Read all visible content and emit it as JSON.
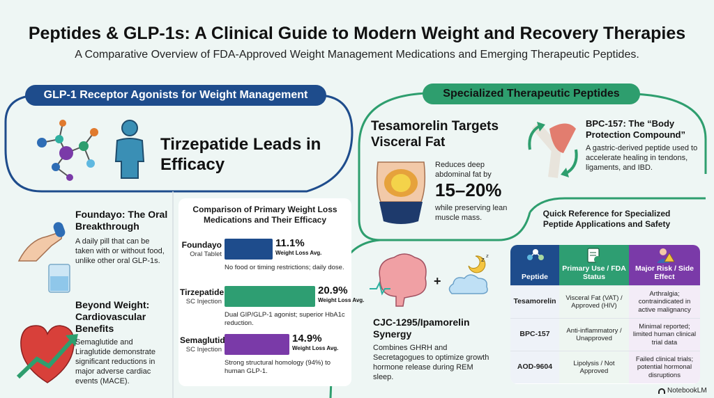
{
  "header": {
    "title": "Peptides & GLP-1s: A Clinical Guide to Modern Weight and Recovery Therapies",
    "subtitle": "A Comparative Overview of FDA-Approved Weight Management Medications and Emerging Therapeutic Peptides."
  },
  "left_section": {
    "pill": "GLP-1 Receptor Agonists for Weight Management",
    "hero": "Tirzepatide Leads in Efficacy",
    "foundayo": {
      "title": "Foundayo: The Oral Breakthrough",
      "desc": "A daily pill that can be taken with or without food, unlike other oral GLP-1s."
    },
    "cardio": {
      "title": "Beyond Weight: Cardiovascular Benefits",
      "desc": "Semaglutide and Liraglutide demonstrate significant reductions in major adverse cardiac events (MACE)."
    }
  },
  "chart_data": {
    "type": "bar",
    "title": "Comparison of Primary Weight Loss Medications and Their Efficacy",
    "categories": [
      "Foundayo",
      "Tirzepatide",
      "Semaglutide"
    ],
    "subtypes": [
      "Oral Tablet",
      "SC Injection",
      "SC Injection"
    ],
    "values": [
      11.1,
      20.9,
      14.9
    ],
    "value_labels": [
      "11.1%",
      "20.9%",
      "14.9%"
    ],
    "value_note": "Weight Loss Avg.",
    "descriptions": [
      "No food or timing restrictions; daily dose.",
      "Dual GIP/GLP-1 agonist; superior HbA1c reduction.",
      "Strong structural homology (94%) to human GLP-1."
    ],
    "colors": [
      "#1e4c8c",
      "#2e9e72",
      "#7a3aa8"
    ]
  },
  "right_section": {
    "pill": "Specialized Therapeutic Peptides",
    "tesamorelin": {
      "title": "Tesamorelin Targets Visceral Fat",
      "pre": "Reduces deep abdominal fat by",
      "stat": "15–20%",
      "post": "while preserving lean muscle mass."
    },
    "bpc": {
      "title": "BPC-157: The “Body Protection Compound”",
      "desc": "A gastric-derived peptide used to accelerate healing in tendons, ligaments, and IBD."
    },
    "cjc": {
      "title": "CJC-1295/Ipamorelin Synergy",
      "desc": "Combines GHRH and Secretagogues to optimize growth hormone release during REM sleep."
    }
  },
  "reference_table": {
    "title": "Quick Reference for Specialized Peptide Applications and Safety",
    "headers": [
      "Peptide",
      "Primary Use / FDA Status",
      "Major Risk / Side Effect"
    ],
    "rows": [
      [
        "Tesamorelin",
        "Visceral Fat (VAT) / Approved (HIV)",
        "Arthralgia; contraindicated in active malignancy"
      ],
      [
        "BPC-157",
        "Anti-inflammatory / Unapproved",
        "Minimal reported; limited human clinical trial data"
      ],
      [
        "AOD-9604",
        "Lipolysis / Not Approved",
        "Failed clinical trials; potential hormonal disruptions"
      ]
    ]
  },
  "footer": {
    "brand": "NotebookLM"
  },
  "colors": {
    "navy": "#1e4c8c",
    "green": "#2e9e6e",
    "purple": "#7a3aa8",
    "background": "#eef6f4"
  }
}
